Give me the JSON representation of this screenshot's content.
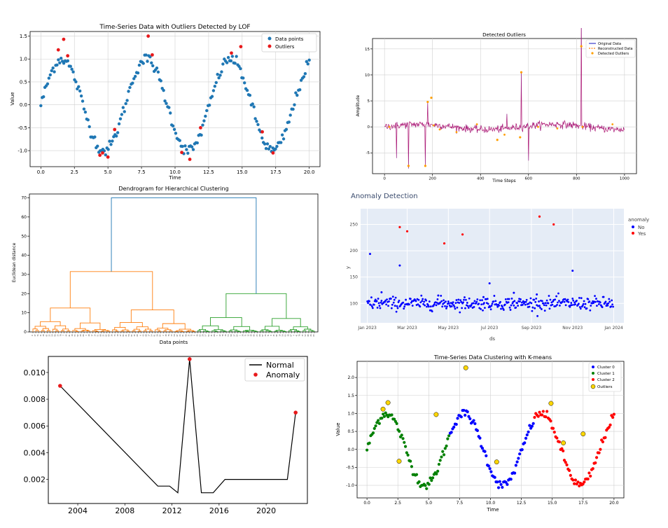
{
  "chart_data": [
    {
      "id": "lof",
      "type": "scatter",
      "title": "Time-Series Data with Outliers Detected by LOF",
      "xlabel": "Time",
      "ylabel": "Value",
      "xlim": [
        -0.8,
        20.8
      ],
      "ylim": [
        -1.35,
        1.6
      ],
      "xticks": [
        0.0,
        2.5,
        5.0,
        7.5,
        10.0,
        12.5,
        15.0,
        17.5,
        20.0
      ],
      "xtick_labels": [
        "0.0",
        "2.5",
        "5.0",
        "7.5",
        "10.0",
        "12.5",
        "15.0",
        "17.5",
        "20.0"
      ],
      "yticks": [
        -1.0,
        -0.5,
        0.0,
        0.5,
        1.0,
        1.5
      ],
      "ytick_labels": [
        "-1.0",
        "-0.5",
        "0.0",
        "0.5",
        "1.0",
        "1.5"
      ],
      "grid": true,
      "legend": "top-right",
      "legend_entries": [
        "Data points",
        "Outliers"
      ],
      "colors": {
        "data": "#1f77b4",
        "outlier": "#e8191b"
      },
      "x_range": [
        0,
        20
      ],
      "n_points": 200,
      "points_are_sine": true,
      "outliers": [
        [
          1.3,
          1.2
        ],
        [
          1.7,
          1.43
        ],
        [
          2.0,
          1.07
        ],
        [
          4.4,
          -1.1
        ],
        [
          4.6,
          -1.05
        ],
        [
          5.0,
          -1.14
        ],
        [
          5.5,
          -0.54
        ],
        [
          8.0,
          1.5
        ],
        [
          8.3,
          1.09
        ],
        [
          10.5,
          -1.04
        ],
        [
          11.1,
          -1.19
        ],
        [
          11.9,
          -0.5
        ],
        [
          14.2,
          1.13
        ],
        [
          14.9,
          1.27
        ],
        [
          16.5,
          -0.59
        ],
        [
          17.3,
          -1.05
        ]
      ]
    },
    {
      "id": "detected",
      "type": "line",
      "title": "Detected Outliers",
      "xlabel": "Time Steps",
      "ylabel": "Amplitude",
      "xlim": [
        -50,
        1050
      ],
      "ylim": [
        -9,
        17
      ],
      "xticks": [
        0,
        200,
        400,
        600,
        800,
        1000
      ],
      "xtick_labels": [
        "0",
        "200",
        "400",
        "600",
        "800",
        "1000"
      ],
      "yticks": [
        -5,
        0,
        5,
        10,
        15
      ],
      "ytick_labels": [
        "-5",
        "0",
        "5",
        "10",
        "15"
      ],
      "grid": true,
      "legend": "top-right",
      "legend_entries": [
        "Original Data",
        "Reconstructed Data",
        "Detected Outliers"
      ],
      "colors": {
        "original": "#3a3acc",
        "reconstructed": "#ff7f0e",
        "outliers": "#ff9f00",
        "overlap": "#d3105a"
      },
      "spikes": [
        [
          50,
          -6
        ],
        [
          100,
          -8
        ],
        [
          170,
          -7.5
        ],
        [
          180,
          4.8
        ],
        [
          195,
          5.6
        ],
        [
          225,
          -5
        ],
        [
          245,
          3.5
        ],
        [
          335,
          -5.5
        ],
        [
          465,
          -2.5
        ],
        [
          505,
          -3.0
        ],
        [
          510,
          2.5
        ],
        [
          565,
          -2.0
        ],
        [
          570,
          10.5
        ],
        [
          600,
          -6.5
        ],
        [
          820,
          35.0
        ],
        [
          935,
          -6.0
        ]
      ],
      "outliers": [
        [
          100,
          -7.5
        ],
        [
          170,
          -7.5
        ],
        [
          180,
          4.8
        ],
        [
          195,
          5.6
        ],
        [
          470,
          -2.5
        ],
        [
          565,
          -2.0
        ],
        [
          570,
          10.5
        ],
        [
          820,
          35.0
        ]
      ]
    },
    {
      "id": "dendrogram",
      "type": "dendrogram",
      "title": "Dendrogram for Hierarchical Clustering",
      "xlabel": "Data points",
      "ylabel": "Euclidean distance",
      "ylim": [
        0,
        72
      ],
      "yticks": [
        0,
        10,
        20,
        30,
        40,
        50,
        60,
        70
      ],
      "ytick_labels": [
        "0",
        "10",
        "20",
        "30",
        "40",
        "50",
        "60",
        "70"
      ],
      "colors": {
        "cluster1": "#ff7f0e",
        "cluster2": "#2ca02c",
        "root": "#1f77b4"
      },
      "root_height": 70,
      "cluster1_height": 31.5,
      "cluster2_height": 20,
      "leaf_count": 100
    },
    {
      "id": "anomaly",
      "type": "scatter",
      "title": "Anomaly Detection",
      "xlabel": "ds",
      "ylabel": "y",
      "xlim": [
        -10,
        380
      ],
      "ylim": [
        63,
        280
      ],
      "xticks": [
        0,
        59,
        120,
        181,
        243,
        304,
        365
      ],
      "xtick_labels": [
        "Jan 2023",
        "Mar 2023",
        "May 2023",
        "Jul 2023",
        "Sep 2023",
        "Nov 2023",
        "Jan 2024"
      ],
      "yticks": [
        100,
        150,
        200,
        250
      ],
      "ytick_labels": [
        "100",
        "150",
        "200",
        "250"
      ],
      "grid": true,
      "legend": "right",
      "legend_title": "anomaly",
      "legend_entries": [
        "No",
        "Yes"
      ],
      "colors": {
        "no": "#0000ff",
        "yes": "#ff0000",
        "plot_bg": "#e5ecf6",
        "title": "#3a4b6d"
      },
      "n_normal": 365,
      "extra_normal": [
        [
          4,
          194
        ],
        [
          21,
          121
        ],
        [
          48,
          172
        ],
        [
          105,
          115
        ],
        [
          172,
          112
        ],
        [
          181,
          138
        ],
        [
          217,
          120
        ],
        [
          251,
          117
        ],
        [
          304,
          162
        ]
      ],
      "anomalies": [
        [
          48,
          245
        ],
        [
          59,
          237
        ],
        [
          114,
          214
        ],
        [
          141,
          231
        ],
        [
          255,
          265
        ],
        [
          276,
          250
        ]
      ]
    },
    {
      "id": "normal-anomaly",
      "type": "line",
      "title": "",
      "xlabel": "",
      "ylabel": "",
      "xlim": [
        2001.5,
        2023.5
      ],
      "ylim": [
        0.0002,
        0.0112
      ],
      "xticks": [
        2004,
        2008,
        2012,
        2016,
        2020
      ],
      "xtick_labels": [
        "2004",
        "2008",
        "2012",
        "2016",
        "2020"
      ],
      "yticks": [
        0.002,
        0.004,
        0.006,
        0.008,
        0.01
      ],
      "ytick_labels": [
        "0.002",
        "0.004",
        "0.006",
        "0.008",
        "0.010"
      ],
      "legend": "top-right",
      "legend_entries": [
        "Normal",
        "Anomaly"
      ],
      "colors": {
        "line": "#000000",
        "anomaly": "#e8191b"
      },
      "series": [
        [
          2002.5,
          0.009
        ],
        [
          2010.8,
          0.0015
        ],
        [
          2011.8,
          0.0015
        ],
        [
          2012.5,
          0.001
        ],
        [
          2013.5,
          0.011
        ],
        [
          2014.5,
          0.001
        ],
        [
          2015.5,
          0.001
        ],
        [
          2016.5,
          0.002
        ],
        [
          2021.8,
          0.002
        ],
        [
          2022.5,
          0.007
        ]
      ],
      "anomalies": [
        [
          2002.5,
          0.009
        ],
        [
          2013.5,
          0.011
        ],
        [
          2022.5,
          0.007
        ]
      ]
    },
    {
      "id": "kmeans",
      "type": "scatter",
      "title": "Time-Series Data Clustering with K-means",
      "xlabel": "Time",
      "ylabel": "Value",
      "xlim": [
        -0.8,
        20.8
      ],
      "ylim": [
        -1.35,
        2.45
      ],
      "xticks": [
        0.0,
        2.5,
        5.0,
        7.5,
        10.0,
        12.5,
        15.0,
        17.5,
        20.0
      ],
      "xtick_labels": [
        "0.0",
        "2.5",
        "5.0",
        "7.5",
        "10.0",
        "12.5",
        "15.0",
        "17.5",
        "20.0"
      ],
      "yticks": [
        -1.0,
        -0.5,
        0.0,
        0.5,
        1.0,
        1.5,
        2.0
      ],
      "ytick_labels": [
        "-1.0",
        "-0.5",
        "0.0",
        "0.5",
        "1.0",
        "1.5",
        "2.0"
      ],
      "grid": true,
      "legend": "top-right",
      "legend_entries": [
        "Cluster 0",
        "Cluster 1",
        "Cluster 2",
        "Outliers"
      ],
      "colors": {
        "c0": "#0000ff",
        "c1": "#008000",
        "c2": "#ff0000",
        "outlier": "#ffd700"
      },
      "cluster_ranges": [
        [
          0,
          6.7,
          "c1"
        ],
        [
          6.7,
          13.5,
          "c0"
        ],
        [
          13.5,
          20,
          "c2"
        ]
      ],
      "outliers": [
        [
          1.3,
          1.12
        ],
        [
          1.7,
          1.3
        ],
        [
          2.6,
          -0.33
        ],
        [
          5.6,
          0.97
        ],
        [
          8.0,
          2.27
        ],
        [
          10.5,
          -0.35
        ],
        [
          14.9,
          1.28
        ],
        [
          15.9,
          0.18
        ],
        [
          17.5,
          0.43
        ]
      ]
    }
  ]
}
